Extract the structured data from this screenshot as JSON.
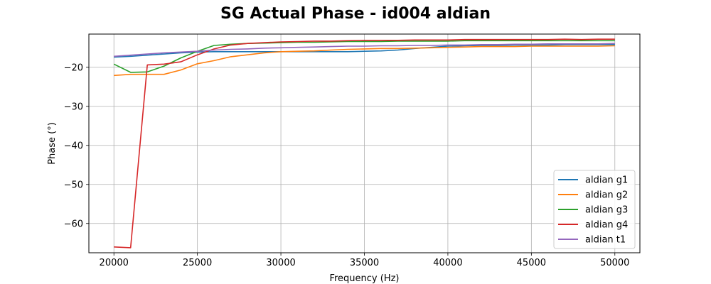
{
  "chart_data": {
    "type": "line",
    "title": "SG Actual Phase - id004 aldian",
    "xlabel": "Frequency (Hz)",
    "ylabel": "Phase (°)",
    "xlim": [
      18500,
      51500
    ],
    "ylim": [
      -67.5,
      -11.5
    ],
    "xticks": [
      20000,
      25000,
      30000,
      35000,
      40000,
      45000,
      50000
    ],
    "yticks": [
      -20,
      -30,
      -40,
      -50,
      -60
    ],
    "grid": true,
    "legend_position": "lower-right",
    "x": [
      20000,
      21000,
      22000,
      23000,
      24000,
      25000,
      26000,
      27000,
      28000,
      29000,
      30000,
      31000,
      32000,
      33000,
      34000,
      35000,
      36000,
      37000,
      38000,
      39000,
      40000,
      41000,
      42000,
      43000,
      44000,
      45000,
      46000,
      47000,
      48000,
      49000,
      50000
    ],
    "series": [
      {
        "name": "aldian g1",
        "color": "#1f77b4",
        "values": [
          -17.4,
          -17.2,
          -16.9,
          -16.6,
          -16.3,
          -16.1,
          -16.0,
          -16.0,
          -16.0,
          -16.0,
          -16.0,
          -16.0,
          -16.0,
          -16.0,
          -16.0,
          -15.9,
          -15.8,
          -15.6,
          -15.2,
          -14.9,
          -14.6,
          -14.5,
          -14.4,
          -14.4,
          -14.3,
          -14.3,
          -14.3,
          -14.2,
          -14.2,
          -14.2,
          -14.2
        ]
      },
      {
        "name": "aldian g2",
        "color": "#ff7f0e",
        "values": [
          -22.1,
          -21.8,
          -21.8,
          -21.8,
          -20.7,
          -19.1,
          -18.3,
          -17.3,
          -16.8,
          -16.3,
          -16.0,
          -15.9,
          -15.8,
          -15.6,
          -15.4,
          -15.3,
          -15.2,
          -15.2,
          -15.1,
          -15.0,
          -14.9,
          -14.8,
          -14.7,
          -14.7,
          -14.7,
          -14.6,
          -14.6,
          -14.6,
          -14.6,
          -14.6,
          -14.5
        ]
      },
      {
        "name": "aldian g3",
        "color": "#2ca02c",
        "values": [
          -19.2,
          -21.3,
          -21.2,
          -19.7,
          -17.6,
          -15.9,
          -14.4,
          -14.1,
          -13.9,
          -13.8,
          -13.7,
          -13.6,
          -13.6,
          -13.5,
          -13.4,
          -13.4,
          -13.4,
          -13.3,
          -13.3,
          -13.3,
          -13.3,
          -13.2,
          -13.2,
          -13.2,
          -13.2,
          -13.2,
          -13.2,
          -13.2,
          -13.2,
          -13.2,
          -13.2
        ]
      },
      {
        "name": "aldian g4",
        "color": "#d62728",
        "values": [
          -66.0,
          -66.2,
          -19.4,
          -19.2,
          -18.6,
          -16.8,
          -15.3,
          -14.3,
          -13.9,
          -13.7,
          -13.5,
          -13.4,
          -13.3,
          -13.3,
          -13.2,
          -13.1,
          -13.1,
          -13.1,
          -13.0,
          -13.0,
          -13.0,
          -12.9,
          -12.9,
          -12.9,
          -12.9,
          -12.9,
          -12.9,
          -12.8,
          -12.9,
          -12.8,
          -12.8
        ]
      },
      {
        "name": "aldian t1",
        "color": "#9467bd",
        "values": [
          -17.2,
          -16.9,
          -16.6,
          -16.3,
          -16.1,
          -15.9,
          -15.6,
          -15.4,
          -15.3,
          -15.1,
          -15.0,
          -14.9,
          -14.8,
          -14.7,
          -14.6,
          -14.6,
          -14.5,
          -14.5,
          -14.4,
          -14.4,
          -14.3,
          -14.3,
          -14.2,
          -14.2,
          -14.1,
          -14.1,
          -14.0,
          -14.0,
          -14.0,
          -14.0,
          -13.9
        ]
      }
    ]
  }
}
